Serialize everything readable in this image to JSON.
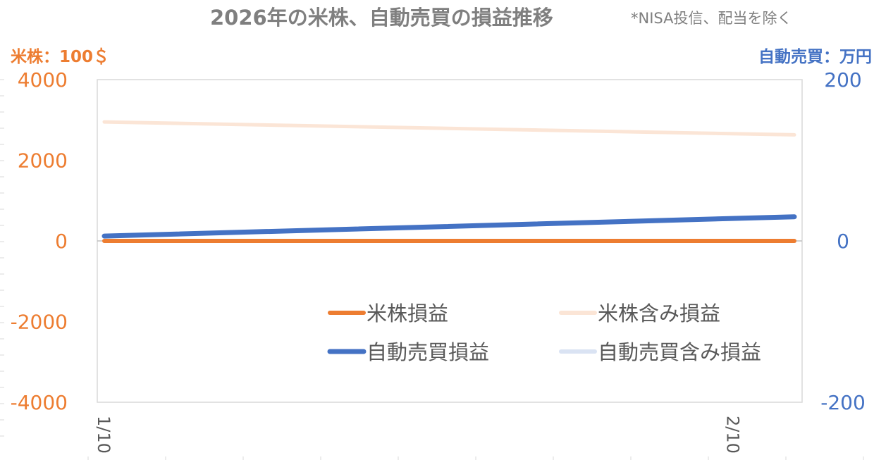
{
  "chart_data": {
    "type": "line",
    "title": "2026年の米株、自動売買の損益推移",
    "subtitle": "*NISA投信、配当を除く",
    "left_axis": {
      "unit_label": "米株：100＄",
      "ylim": [
        -4000,
        4000
      ],
      "ticks": [
        4000,
        2000,
        0,
        -2000,
        -4000
      ],
      "tick_labels": [
        "4000",
        "2000",
        "0",
        "-2000",
        "-4000"
      ],
      "color": "#ed7d31"
    },
    "right_axis": {
      "unit_label": "自動売買：万円",
      "ylim": [
        -200,
        200
      ],
      "ticks": [
        200,
        0,
        -200
      ],
      "tick_labels": [
        "200",
        "0",
        "-200"
      ],
      "color": "#4472c4"
    },
    "x": {
      "range": [
        "2026-01-10",
        "2026-02-13"
      ],
      "ticks": [
        "2026-01-10",
        "2026-02-10"
      ],
      "tick_labels": [
        "1/10",
        "2/10"
      ]
    },
    "series": [
      {
        "name": "米株損益",
        "axis": "left",
        "color": "#ed7d31",
        "points": [
          [
            "2026-01-10",
            0
          ],
          [
            "2026-02-13",
            0
          ]
        ]
      },
      {
        "name": "米株含み損益",
        "axis": "left",
        "color": "#fbe5d6",
        "points": [
          [
            "2026-01-10",
            2950
          ],
          [
            "2026-02-13",
            2630
          ]
        ]
      },
      {
        "name": "自動売買損益",
        "axis": "right",
        "color": "#4472c4",
        "points": [
          [
            "2026-01-10",
            6
          ],
          [
            "2026-02-13",
            30
          ]
        ]
      },
      {
        "name": "自動売買含み損益",
        "axis": "right",
        "color": "#dae3f3",
        "points": []
      }
    ],
    "grid": false,
    "legend_position": "lower-right"
  }
}
